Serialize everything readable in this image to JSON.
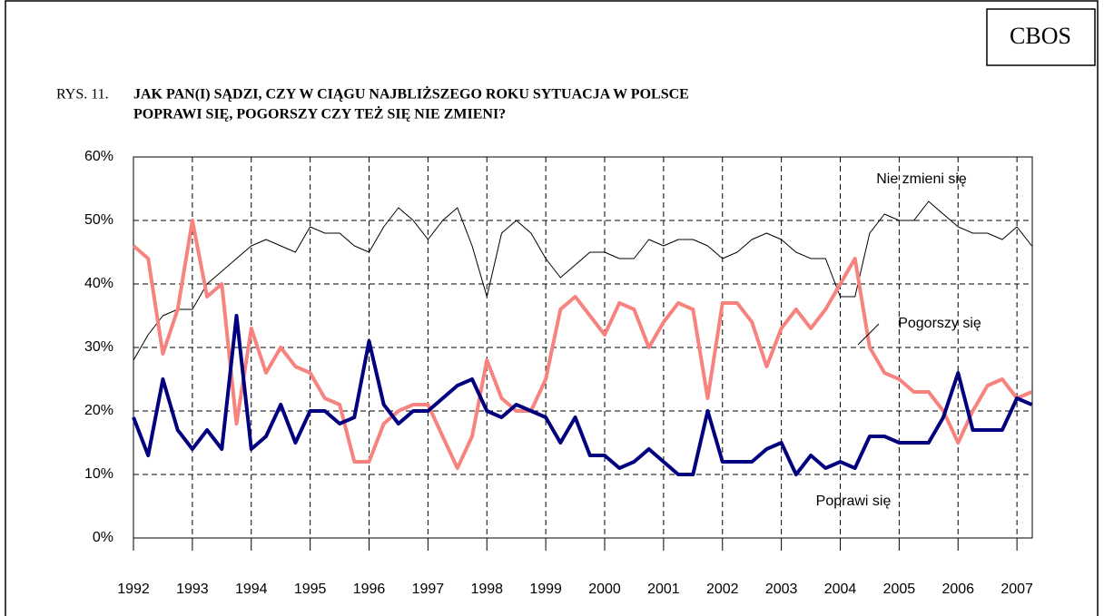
{
  "brand": "CBOS",
  "chart_data": {
    "type": "line",
    "figure_label": "RYS. 11.",
    "title_lines": [
      "JAK PAN(I) SĄDZI, CZY W CIĄGU NAJBLIŻSZEGO ROKU SYTUACJA W POLSCE",
      "POPRAWI SIĘ, POGORSZY CZY TEŻ SIĘ NIE ZMIENI?"
    ],
    "x": [
      1992,
      1992.25,
      1992.5,
      1992.75,
      1993,
      1993.25,
      1993.5,
      1993.75,
      1994,
      1994.25,
      1994.5,
      1994.75,
      1995,
      1995.25,
      1995.5,
      1995.75,
      1996,
      1996.25,
      1996.5,
      1996.75,
      1997,
      1997.25,
      1997.5,
      1997.75,
      1998,
      1998.25,
      1998.5,
      1998.75,
      1999,
      1999.25,
      1999.5,
      1999.75,
      2000,
      2000.25,
      2000.5,
      2000.75,
      2001,
      2001.25,
      2001.5,
      2001.75,
      2002,
      2002.25,
      2002.5,
      2002.75,
      2003,
      2003.25,
      2003.5,
      2003.75,
      2004,
      2004.25,
      2004.5,
      2004.75,
      2005,
      2005.25,
      2005.5,
      2005.75,
      2006,
      2006.25,
      2006.5,
      2006.75,
      2007,
      2007.25
    ],
    "series": [
      {
        "name": "Nie zmieni się",
        "color": "#000000",
        "width": 1,
        "values": [
          28,
          32,
          35,
          36,
          36,
          40,
          42,
          44,
          46,
          47,
          46,
          45,
          49,
          48,
          48,
          46,
          45,
          49,
          52,
          50,
          47,
          50,
          52,
          46,
          38,
          48,
          50,
          48,
          44,
          41,
          43,
          45,
          45,
          44,
          44,
          47,
          46,
          47,
          47,
          46,
          44,
          45,
          47,
          48,
          47,
          45,
          44,
          44,
          38,
          38,
          48,
          51,
          50,
          50,
          53,
          51,
          49,
          48,
          48,
          47,
          49,
          46
        ]
      },
      {
        "name": "Pogorszy się",
        "color": "#f7837f",
        "width": 4,
        "values": [
          46,
          44,
          29,
          36,
          50,
          38,
          40,
          18,
          33,
          26,
          30,
          27,
          26,
          22,
          21,
          12,
          12,
          18,
          20,
          21,
          21,
          16,
          11,
          16,
          28,
          22,
          20,
          20,
          25,
          36,
          38,
          35,
          32,
          37,
          36,
          30,
          34,
          37,
          36,
          22,
          37,
          37,
          34,
          27,
          33,
          36,
          33,
          36,
          40,
          44,
          30,
          26,
          25,
          23,
          23,
          20,
          15,
          20,
          24,
          25,
          22,
          23
        ]
      },
      {
        "name": "Poprawi się",
        "color": "#00007f",
        "width": 4,
        "values": [
          19,
          13,
          25,
          17,
          14,
          17,
          14,
          35,
          14,
          16,
          21,
          15,
          20,
          20,
          18,
          19,
          31,
          21,
          18,
          20,
          20,
          22,
          24,
          25,
          20,
          19,
          21,
          20,
          19,
          15,
          19,
          13,
          13,
          11,
          12,
          14,
          12,
          10,
          10,
          20,
          12,
          12,
          12,
          14,
          15,
          10,
          13,
          11,
          12,
          11,
          16,
          16,
          15,
          15,
          15,
          19,
          26,
          17,
          17,
          17,
          22,
          21
        ]
      }
    ],
    "xlim": [
      1992,
      2007.26
    ],
    "xticks": [
      1992,
      1993,
      1994,
      1995,
      1996,
      1997,
      1998,
      1999,
      2000,
      2001,
      2002,
      2003,
      2004,
      2005,
      2006,
      2007
    ],
    "ylim": [
      0,
      60
    ],
    "yticks": [
      {
        "value": 0,
        "label": "0%"
      },
      {
        "value": 10,
        "label": "10%"
      },
      {
        "value": 20,
        "label": "20%"
      },
      {
        "value": 30,
        "label": "30%"
      },
      {
        "value": 40,
        "label": "40%"
      },
      {
        "value": 50,
        "label": "50%"
      },
      {
        "value": 60,
        "label": "60%"
      }
    ],
    "grid": true
  }
}
